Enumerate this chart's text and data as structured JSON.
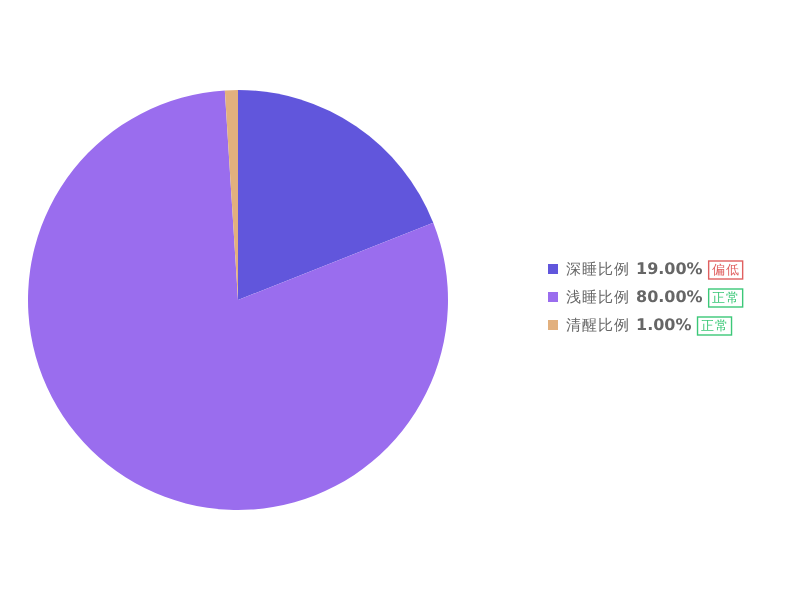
{
  "chart_data": {
    "type": "pie",
    "categories": [
      "深睡比例",
      "浅睡比例",
      "清醒比例"
    ],
    "values": [
      19,
      80,
      1
    ],
    "colors": [
      "#6156dc",
      "#9a6dee",
      "#e2b07e"
    ],
    "value_labels": [
      "19.00%",
      "80.00%",
      "1.00%"
    ],
    "annotations": [
      "偏低",
      "正常",
      "正常"
    ],
    "legend": "right"
  }
}
